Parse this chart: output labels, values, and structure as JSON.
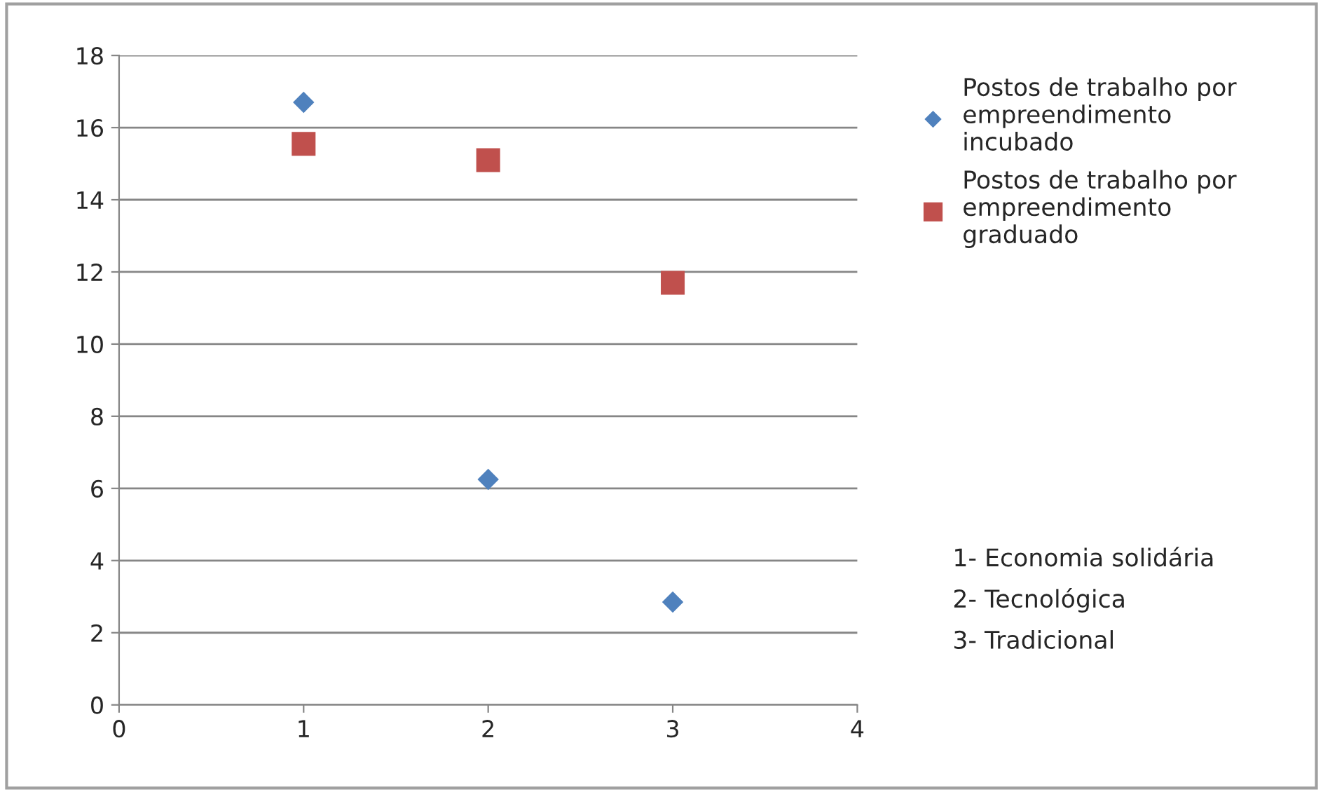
{
  "chart_data": {
    "type": "scatter",
    "x": [
      1,
      2,
      3
    ],
    "series": [
      {
        "name": "Postos de trabalho por empreendimento incubado",
        "color": "#4f81bd",
        "marker": "diamond",
        "values": [
          16.7,
          6.25,
          2.85
        ]
      },
      {
        "name": "Postos de trabalho por empreendimento graduado",
        "color": "#c0504d",
        "marker": "square",
        "values": [
          15.55,
          15.1,
          11.7
        ]
      }
    ],
    "xlim": [
      0,
      4
    ],
    "xticks": [
      0,
      1,
      2,
      3,
      4
    ],
    "ylim": [
      0,
      18
    ],
    "yticks": [
      0,
      2,
      4,
      6,
      8,
      10,
      12,
      14,
      16,
      18
    ],
    "grid": "y",
    "legend": "right",
    "annotations": [
      "1- Economia solidária",
      "2- Tecnológica",
      "3- Tradicional"
    ]
  }
}
